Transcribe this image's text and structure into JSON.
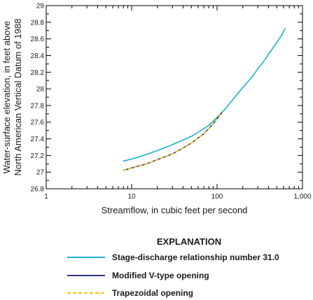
{
  "chart_data": {
    "type": "line",
    "xlabel": "Streamflow, in cubic feet per second",
    "ylabel_lines": [
      "Water-surface elevation, in feet above",
      "North American Vertical Datum of 1988"
    ],
    "x_scale": "log",
    "xlim": [
      1,
      1000
    ],
    "ylim": [
      26.8,
      29
    ],
    "x_ticks": [
      {
        "value": 1,
        "label": "1"
      },
      {
        "value": 10,
        "label": "10"
      },
      {
        "value": 100,
        "label": "100"
      },
      {
        "value": 1000,
        "label": "1,000"
      }
    ],
    "y_ticks": [
      {
        "value": 26.8,
        "label": "26.8"
      },
      {
        "value": 27.0,
        "label": "27"
      },
      {
        "value": 27.2,
        "label": "27.2"
      },
      {
        "value": 27.4,
        "label": "27.4"
      },
      {
        "value": 27.6,
        "label": "27.6"
      },
      {
        "value": 27.8,
        "label": "27.8"
      },
      {
        "value": 28.0,
        "label": "28"
      },
      {
        "value": 28.2,
        "label": "28.2"
      },
      {
        "value": 28.4,
        "label": "28.4"
      },
      {
        "value": 28.6,
        "label": "28.6"
      },
      {
        "value": 28.8,
        "label": "28.8"
      },
      {
        "value": 29.0,
        "label": "29"
      }
    ],
    "grid": false,
    "legend_title": "EXPLANATION",
    "legend_position": "bottom",
    "series": [
      {
        "name": "Stage-discharge relationship number 31.0",
        "color": "#1ab0d0",
        "dash": "solid",
        "x": [
          7.9,
          12,
          20,
          30,
          50,
          80,
          120,
          180,
          250,
          350,
          450,
          560,
          630
        ],
        "y": [
          27.13,
          27.18,
          27.26,
          27.33,
          27.43,
          27.56,
          27.74,
          27.96,
          28.13,
          28.33,
          28.49,
          28.63,
          28.73
        ]
      },
      {
        "name": "Modified V-type opening",
        "color": "#2e3192",
        "dash": "solid",
        "x": [
          7.9,
          10,
          15,
          20,
          30,
          40,
          50,
          70,
          90,
          115
        ],
        "y": [
          27.02,
          27.05,
          27.1,
          27.15,
          27.22,
          27.29,
          27.35,
          27.46,
          27.58,
          27.72
        ]
      },
      {
        "name": "Trapezoidal opening",
        "color": "#f2c200",
        "dash": "dashed",
        "x": [
          7.9,
          10,
          15,
          20,
          30,
          40,
          50,
          70,
          90,
          115
        ],
        "y": [
          27.02,
          27.05,
          27.1,
          27.15,
          27.22,
          27.29,
          27.35,
          27.46,
          27.58,
          27.72
        ]
      }
    ]
  }
}
